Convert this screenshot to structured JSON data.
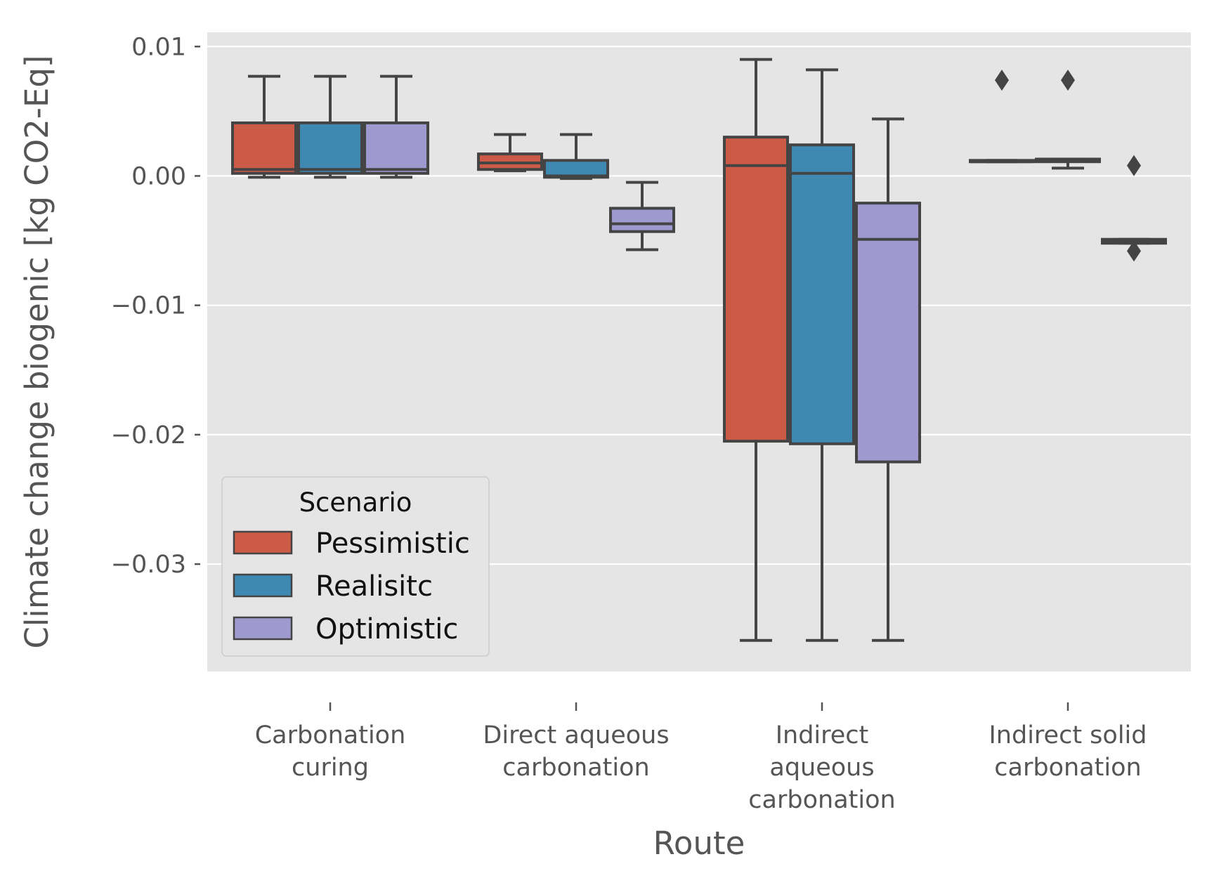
{
  "chart_data": {
    "type": "box",
    "xlabel": "Route",
    "ylabel": "Climate change biogenic [kg CO2-Eq]",
    "ylim": [
      -0.0383,
      0.0111
    ],
    "yticks": [
      0.01,
      0.0,
      -0.01,
      -0.02,
      -0.03
    ],
    "ytick_labels": [
      "0.01",
      "0.00",
      "−0.01",
      "−0.02",
      "−0.03"
    ],
    "grid": true,
    "legend": {
      "title": "Scenario",
      "position": "lower-left",
      "entries": [
        "Pessimistic",
        "Realisitc",
        "Optimistic"
      ]
    },
    "categories": [
      {
        "label": "Carbonation curing",
        "lines": [
          "Carbonation",
          "curing"
        ]
      },
      {
        "label": "Direct aqueous carbonation",
        "lines": [
          "Direct aqueous",
          "carbonation"
        ]
      },
      {
        "label": "Indirect aqueous carbonation",
        "lines": [
          "Indirect",
          "aqueous",
          "carbonation"
        ]
      },
      {
        "label": "Indirect solid carbonation",
        "lines": [
          "Indirect solid",
          "carbonation"
        ]
      }
    ],
    "series": [
      {
        "name": "Pessimistic",
        "color": "#CB5A47",
        "boxes": [
          {
            "whislo": -0.0001,
            "q1": 0.0002,
            "med": 0.0005,
            "q3": 0.0041,
            "whishi": 0.0077,
            "fliers": []
          },
          {
            "whislo": 0.0004,
            "q1": 0.0005,
            "med": 0.001,
            "q3": 0.0017,
            "whishi": 0.0032,
            "fliers": []
          },
          {
            "whislo": -0.0359,
            "q1": -0.0205,
            "med": 0.0008,
            "q3": 0.003,
            "whishi": 0.009,
            "fliers": []
          },
          {
            "whislo": 0.0011,
            "q1": 0.0011,
            "med": 0.0011,
            "q3": 0.0012,
            "whishi": 0.0012,
            "fliers": [
              0.0074
            ]
          }
        ]
      },
      {
        "name": "Realisitc",
        "color": "#3E88B2",
        "boxes": [
          {
            "whislo": -0.0001,
            "q1": 0.0002,
            "med": 0.0005,
            "q3": 0.0041,
            "whishi": 0.0077,
            "fliers": []
          },
          {
            "whislo": -0.0002,
            "q1": -0.0001,
            "med": 0.0,
            "q3": 0.0012,
            "whishi": 0.0032,
            "fliers": []
          },
          {
            "whislo": -0.0359,
            "q1": -0.0207,
            "med": 0.0002,
            "q3": 0.0024,
            "whishi": 0.0082,
            "fliers": []
          },
          {
            "whislo": 0.0006,
            "q1": 0.0011,
            "med": 0.0012,
            "q3": 0.0013,
            "whishi": 0.0013,
            "fliers": [
              0.0074
            ]
          }
        ]
      },
      {
        "name": "Optimistic",
        "color": "#9E99CF",
        "boxes": [
          {
            "whislo": -0.0001,
            "q1": 0.0002,
            "med": 0.0005,
            "q3": 0.0041,
            "whishi": 0.0077,
            "fliers": []
          },
          {
            "whislo": -0.0057,
            "q1": -0.0043,
            "med": -0.0037,
            "q3": -0.0025,
            "whishi": -0.0005,
            "fliers": []
          },
          {
            "whislo": -0.0359,
            "q1": -0.0221,
            "med": -0.0049,
            "q3": -0.0021,
            "whishi": 0.0044,
            "fliers": []
          },
          {
            "whislo": -0.0052,
            "q1": -0.0052,
            "med": -0.005,
            "q3": -0.0049,
            "whishi": -0.0049,
            "fliers": [
              0.0008,
              -0.0058
            ]
          }
        ]
      }
    ]
  }
}
